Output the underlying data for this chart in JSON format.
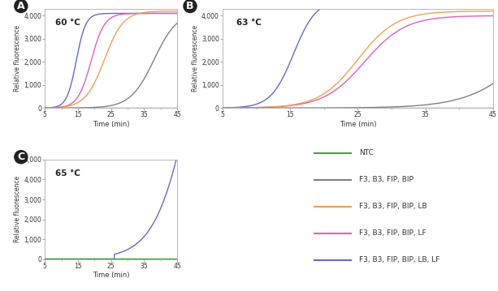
{
  "title_A": "60 °C",
  "title_B": "63 °C",
  "title_C": "65 °C",
  "xlabel": "Time (min)",
  "ylabel": "Relative fluorescence",
  "xlim": [
    5,
    45
  ],
  "ylim_AB": [
    0,
    4300
  ],
  "ylim_C": [
    0,
    5000
  ],
  "xticks": [
    5,
    15,
    25,
    35,
    45
  ],
  "yticks_AB": [
    0,
    1000,
    2000,
    3000,
    4000
  ],
  "yticks_C": [
    0,
    1000,
    2000,
    3000,
    4000,
    5000
  ],
  "colors": {
    "NTC": "#3aaa35",
    "F3B3FIPBIP": "#808080",
    "F3B3FIPBIPLB": "#f0a050",
    "F3B3FIPBIPLF": "#e060b8",
    "F3B3FIPBIPLBLF": "#6868cc"
  },
  "legend_labels": [
    "NTC",
    "F3, B3, FIP, BIP",
    "F3, B3, FIP, BIP, LB",
    "F3, B3, FIP, BIP, LF",
    "F3, B3, FIP, BIP, LB, LF"
  ],
  "legend_colors": [
    "#3aaa35",
    "#808080",
    "#f0a050",
    "#e060b8",
    "#6868cc"
  ],
  "background": "#ffffff",
  "panel_labels": [
    "A",
    "B",
    "C"
  ],
  "spine_color": "#aaaaaa",
  "tick_color": "#aaaaaa"
}
